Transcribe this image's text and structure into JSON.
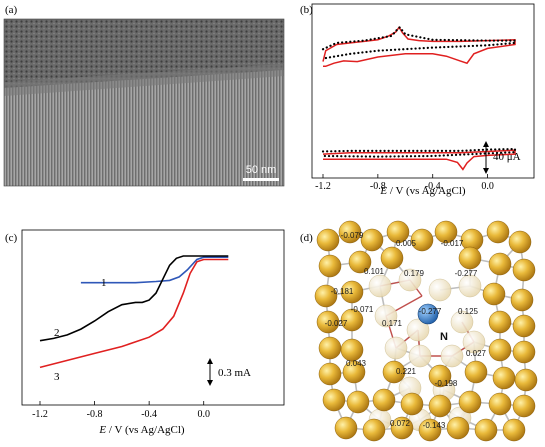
{
  "panel_a": {
    "label": "(a)",
    "scale_bar": "50 nm"
  },
  "panel_b": {
    "label": "(b)",
    "xlabel_e": "E",
    "xlabel_rest": " / V (vs Ag/AgCl)",
    "scale_label": "40 μA",
    "x_ticks": [
      "-1.2",
      "-0.8",
      "-0.4",
      "0.0"
    ]
  },
  "panel_c": {
    "label": "(c)",
    "xlabel_e": "E",
    "xlabel_rest": " / V (vs Ag/AgCl)",
    "scale_label": "0.3 mA",
    "x_ticks": [
      "-1.2",
      "-0.8",
      "-0.4",
      "0.0"
    ],
    "curve_labels": [
      {
        "text": "1",
        "color": "#2f57b8"
      },
      {
        "text": "2",
        "color": "#000000"
      },
      {
        "text": "3",
        "color": "#e02020"
      }
    ]
  },
  "panel_d": {
    "label": "(d)",
    "atom_label": "N",
    "charges": [
      "-0.079",
      "0.005",
      "-0.017",
      "0.101",
      "0.179",
      "-0.277",
      "-0.181",
      "-0.071",
      "-0.027",
      "-0.277",
      "0.125",
      "0.171",
      "0.027",
      "0.043",
      "0.221",
      "-0.198",
      "0.072",
      "-0.143"
    ]
  },
  "chart_data": [
    {
      "type": "line",
      "panel": "b",
      "xlabel": "E / V (vs Ag/AgCl)",
      "x_ticks": [
        -1.2,
        -0.8,
        -0.4,
        0.0
      ],
      "xlim": [
        -1.25,
        0.2
      ],
      "series": [
        {
          "color": "#e02020",
          "style": "solid",
          "trace": "top",
          "x": [
            -1.2,
            -1.18,
            -1.1,
            -1.0,
            -0.9,
            -0.8,
            -0.72,
            -0.67,
            -0.645,
            -0.62,
            -0.58,
            -0.5,
            -0.4,
            -0.3,
            -0.2,
            0.0,
            0.2,
            0.2,
            0.0,
            -0.1,
            -0.15,
            -0.2,
            -0.3,
            -0.4,
            -0.6,
            -0.8,
            -0.95,
            -1.05,
            -1.12,
            -1.18,
            -1.2
          ],
          "y": [
            0.62,
            0.76,
            0.84,
            0.86,
            0.88,
            0.9,
            0.95,
            1.0,
            1.06,
            0.99,
            0.91,
            0.89,
            0.88,
            0.88,
            0.88,
            0.89,
            0.9,
            0.84,
            0.79,
            0.72,
            0.6,
            0.63,
            0.69,
            0.72,
            0.72,
            0.68,
            0.62,
            0.63,
            0.6,
            0.56,
            0.56
          ]
        },
        {
          "color": "#000000",
          "style": "dotted",
          "trace": "top",
          "x": [
            -1.2,
            -1.1,
            -0.9,
            -0.7,
            -0.66,
            -0.64,
            -0.6,
            -0.4,
            0.0,
            0.2,
            0.2,
            0.0,
            -0.4,
            -0.8,
            -1.0,
            -1.2
          ],
          "y": [
            0.78,
            0.86,
            0.89,
            0.95,
            1.03,
            1.06,
            0.97,
            0.9,
            0.89,
            0.89,
            0.86,
            0.83,
            0.8,
            0.76,
            0.72,
            0.66
          ]
        },
        {
          "color": "#e02020",
          "style": "solid",
          "trace": "bottom",
          "x": [
            -1.2,
            -1.0,
            -0.8,
            -0.6,
            -0.4,
            -0.2,
            0.0,
            0.2,
            0.2,
            0.0,
            -0.1,
            -0.15,
            -0.18,
            -0.22,
            -0.3,
            -0.5,
            -0.8,
            -1.0,
            -1.2
          ],
          "y": [
            0.28,
            0.3,
            0.3,
            0.3,
            0.3,
            0.3,
            0.32,
            0.34,
            0.28,
            0.26,
            0.24,
            0.14,
            0.04,
            0.15,
            0.2,
            0.2,
            0.2,
            0.2,
            0.2
          ]
        },
        {
          "color": "#000000",
          "style": "dotted",
          "trace": "bottom",
          "x": [
            -1.2,
            -1.0,
            -0.6,
            -0.2,
            0.0,
            0.2,
            0.2,
            0.0,
            -0.4,
            -0.8,
            -1.2
          ],
          "y": [
            0.32,
            0.33,
            0.33,
            0.33,
            0.35,
            0.36,
            0.31,
            0.29,
            0.25,
            0.24,
            0.25
          ]
        }
      ]
    },
    {
      "type": "line",
      "panel": "c",
      "xlabel": "E / V (vs Ag/AgCl)",
      "x_ticks": [
        -1.2,
        -0.8,
        -0.4,
        0.0
      ],
      "xlim": [
        -1.25,
        0.2
      ],
      "series": [
        {
          "name": "1",
          "color": "#2f57b8",
          "x": [
            -0.9,
            -0.7,
            -0.5,
            -0.35,
            -0.25,
            -0.18,
            -0.12,
            -0.05,
            0.0,
            0.1,
            0.18
          ],
          "y": [
            0.77,
            0.77,
            0.77,
            0.78,
            0.79,
            0.82,
            0.88,
            0.97,
            0.99,
            0.99,
            0.99
          ]
        },
        {
          "name": "2",
          "color": "#000000",
          "x": [
            -1.2,
            -1.1,
            -1.0,
            -0.9,
            -0.8,
            -0.7,
            -0.6,
            -0.5,
            -0.45,
            -0.4,
            -0.35,
            -0.3,
            -0.25,
            -0.2,
            -0.15,
            -0.1,
            0.0,
            0.18
          ],
          "y": [
            0.27,
            0.29,
            0.32,
            0.37,
            0.44,
            0.52,
            0.58,
            0.6,
            0.6,
            0.62,
            0.68,
            0.8,
            0.92,
            0.98,
            1.0,
            1.0,
            1.0,
            1.0
          ]
        },
        {
          "name": "3",
          "color": "#e02020",
          "x": [
            -1.2,
            -1.0,
            -0.8,
            -0.6,
            -0.4,
            -0.3,
            -0.22,
            -0.15,
            -0.1,
            -0.05,
            0.0,
            0.18
          ],
          "y": [
            0.04,
            0.1,
            0.16,
            0.22,
            0.3,
            0.37,
            0.48,
            0.68,
            0.85,
            0.95,
            0.97,
            0.97
          ]
        }
      ]
    }
  ]
}
